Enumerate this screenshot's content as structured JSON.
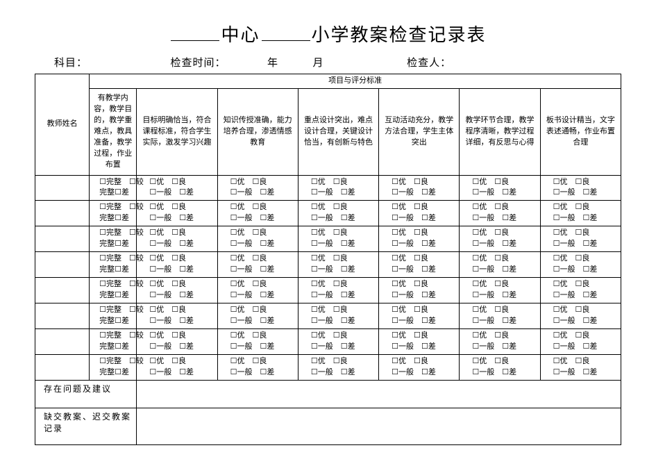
{
  "title": {
    "prefix_blank": "",
    "center": "中心",
    "suffix": "小学教案检查记录表"
  },
  "meta": {
    "subject_label": "科目：",
    "check_time_label": "检查时间：",
    "year_label": "年",
    "month_label": "月",
    "inspector_label": "检查人："
  },
  "table": {
    "teacher_name_header": "教师姓名",
    "criteria_group_header": "项目与评分标准",
    "criteria": [
      "有教学内容，教学目的，教学重难点，教具准备，教学过程，作业布置",
      "目标明确恰当，符合课程标准，符合学生实际，激发学习兴趣",
      "知识传授准确，能力培养合理，渗透情感教育",
      "重点设计突出，难点设计合理，关键设计恰当，有创新与特色",
      "互动活动充分，教学方法合理，学生主体突出",
      "教学环节合理，教学程序清晰，教学过程详细，有反思与心得",
      "板书设计精当，文字表述通畅，作业布置合理"
    ],
    "col0_options": {
      "r1": "☐完整　☐较",
      "r2": "完整☐差"
    },
    "std_options": {
      "r1": "☐优　☐良",
      "r2": "☐一般　☐差"
    },
    "row_count": 8,
    "footer1": "存在问题及建议",
    "footer2": "缺交教案、迟交教案记录"
  }
}
